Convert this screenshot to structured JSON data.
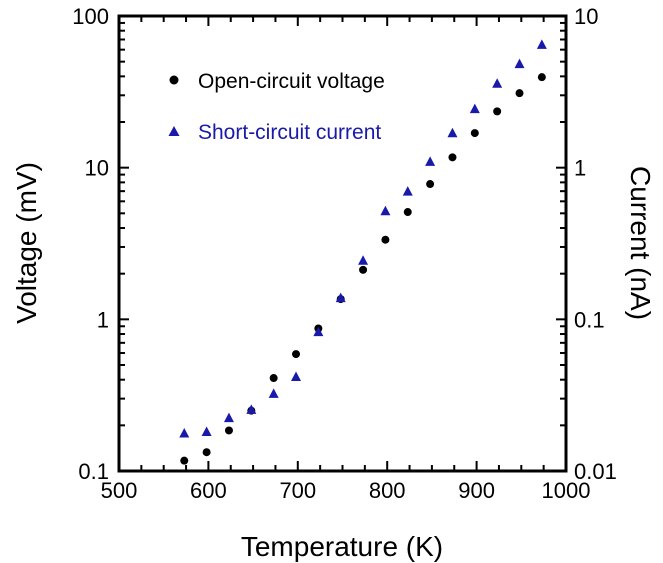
{
  "chart_data": {
    "type": "scatter",
    "xlabel": "Temperature (K)",
    "ylabel": "Voltage (mV)",
    "y2label": "Current (nA)",
    "xlim": [
      500,
      1000
    ],
    "ylim": [
      0.1,
      100
    ],
    "y2lim": [
      0.01,
      10
    ],
    "yscale": "log",
    "y2scale": "log",
    "x_ticks": [
      "500",
      "600",
      "700",
      "800",
      "900",
      "1000"
    ],
    "y_ticks": [
      "0.1",
      "1",
      "10",
      "100"
    ],
    "y2_ticks": [
      "0.01",
      "0.1",
      "1",
      "10"
    ],
    "grid": false,
    "legend_position": "top-left",
    "series": [
      {
        "name": "Open-circuit voltage",
        "axis": "left",
        "marker": "circle",
        "color": "#000000",
        "x": [
          573,
          598,
          623,
          648,
          673,
          698,
          723,
          748,
          773,
          798,
          823,
          848,
          873,
          898,
          923,
          948,
          973
        ],
        "y": [
          0.117,
          0.133,
          0.185,
          0.25,
          0.41,
          0.59,
          0.87,
          1.36,
          2.12,
          3.35,
          5.1,
          7.8,
          11.7,
          16.9,
          23.5,
          31.0,
          39.5
        ]
      },
      {
        "name": "Short-circuit current",
        "axis": "right",
        "marker": "triangle",
        "color": "#1a1aaa",
        "x": [
          573,
          598,
          623,
          648,
          673,
          698,
          723,
          748,
          773,
          798,
          823,
          848,
          873,
          898,
          923,
          948,
          973
        ],
        "y": [
          0.0178,
          0.0182,
          0.0225,
          0.0255,
          0.0325,
          0.042,
          0.083,
          0.139,
          0.245,
          0.52,
          0.7,
          1.1,
          1.7,
          2.45,
          3.6,
          4.85,
          6.5
        ]
      }
    ]
  }
}
